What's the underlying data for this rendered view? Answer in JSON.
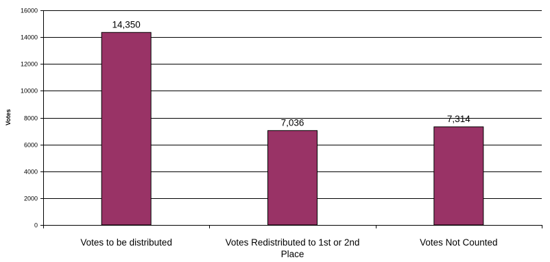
{
  "chart_data": {
    "type": "bar",
    "title": "",
    "xlabel": "",
    "ylabel": "Votes",
    "ylim": [
      0,
      16000
    ],
    "yticks": [
      0,
      2000,
      4000,
      6000,
      8000,
      10000,
      12000,
      14000,
      16000
    ],
    "ytick_labels": [
      "0",
      "2000",
      "4000",
      "6000",
      "8000",
      "10000",
      "12000",
      "14000",
      "16000"
    ],
    "grid": true,
    "legend": "none",
    "categories": [
      "Votes to be distributed",
      "Votes Redistributed to 1st or 2nd Place",
      "Votes Not Counted"
    ],
    "category_lines": [
      [
        "Votes to be distributed"
      ],
      [
        "Votes Redistributed to 1st or 2nd",
        "Place"
      ],
      [
        "Votes Not Counted"
      ]
    ],
    "values": [
      14350,
      7036,
      7314
    ],
    "data_labels": [
      "14,350",
      "7,036",
      "7,314"
    ],
    "colors": {
      "bar": "#993366",
      "bar_edge": "#000000",
      "grid": "#000000",
      "axis": "#000000"
    }
  }
}
